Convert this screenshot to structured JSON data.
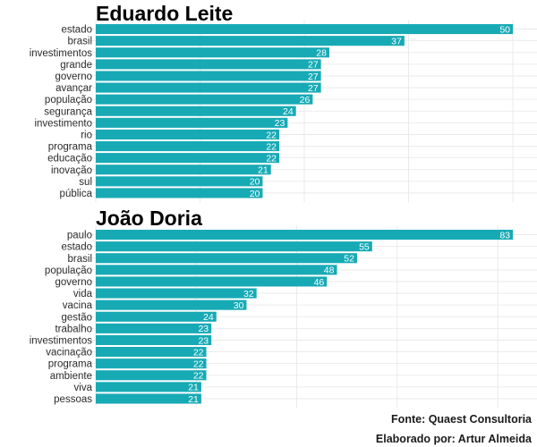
{
  "chart_data": [
    {
      "type": "bar",
      "orientation": "horizontal",
      "title": "Eduardo Leite",
      "categories": [
        "estado",
        "brasil",
        "investimentos",
        "grande",
        "governo",
        "avançar",
        "população",
        "segurança",
        "investimento",
        "rio",
        "programa",
        "educação",
        "inovação",
        "sul",
        "pública"
      ],
      "values": [
        50,
        37,
        28,
        27,
        27,
        27,
        26,
        24,
        23,
        22,
        22,
        22,
        21,
        20,
        20
      ],
      "xlim": [
        0,
        50
      ],
      "grid": true,
      "data_labels": true
    },
    {
      "type": "bar",
      "orientation": "horizontal",
      "title": "João Doria",
      "categories": [
        "paulo",
        "estado",
        "brasil",
        "população",
        "governo",
        "vida",
        "vacina",
        "gestão",
        "trabalho",
        "investimentos",
        "vacinação",
        "programa",
        "ambiente",
        "viva",
        "pessoas"
      ],
      "values": [
        83,
        55,
        52,
        48,
        46,
        32,
        30,
        24,
        23,
        23,
        22,
        22,
        22,
        21,
        21
      ],
      "xlim": [
        0,
        83
      ],
      "grid": true,
      "data_labels": true
    }
  ],
  "colors": {
    "bar": "#17aab5",
    "grid": "#e6e6e6",
    "text": "#2b2b2b"
  },
  "footer": {
    "source": "Fonte: Quaest Consultoria",
    "credit": "Elaborado por: Artur Almeida"
  }
}
